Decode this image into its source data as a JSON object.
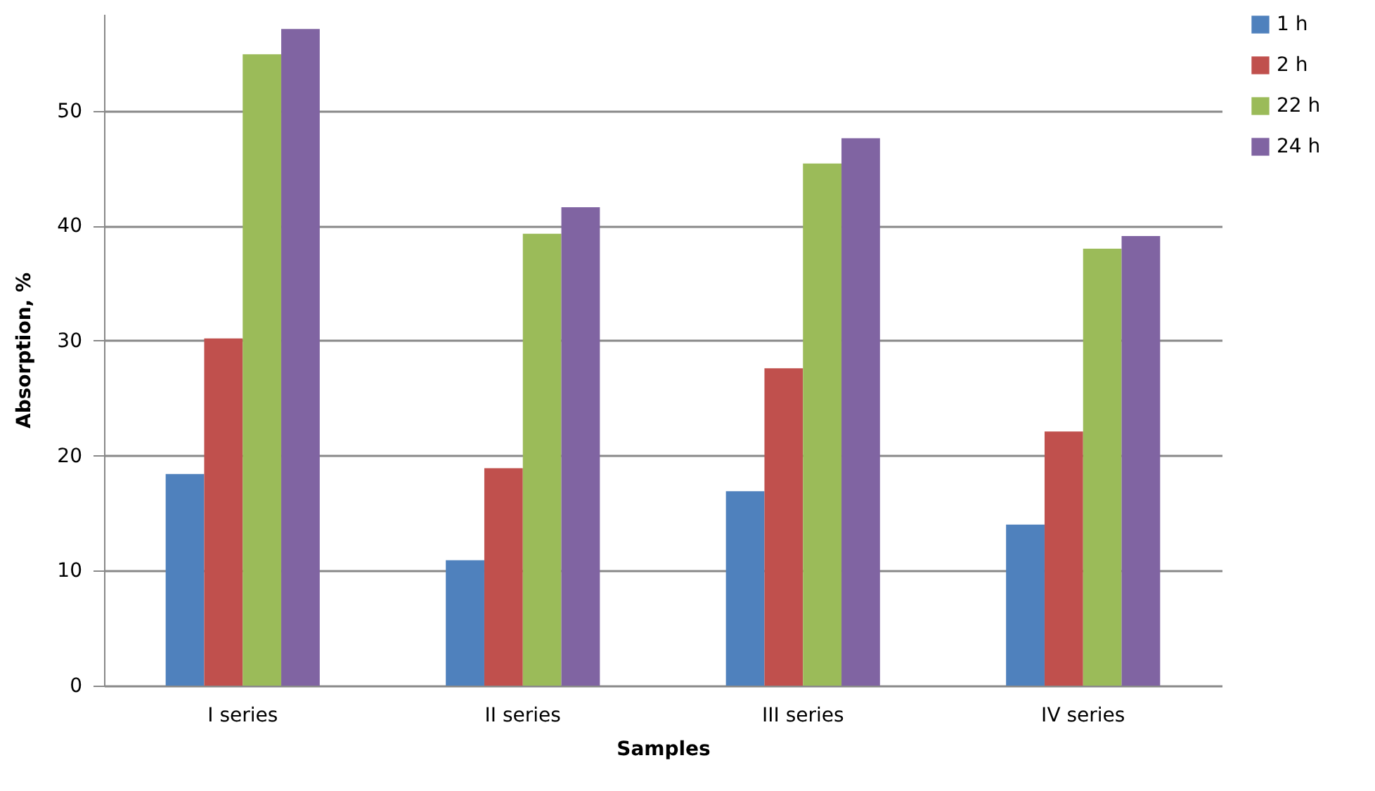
{
  "chart_data": {
    "type": "bar",
    "xlabel": "Samples",
    "ylabel": "Absorption, %",
    "categories": [
      "I series",
      "II series",
      "III series",
      "IV series"
    ],
    "series": [
      {
        "name": "1 h",
        "color": "#4f81bd",
        "values": [
          18.4,
          10.9,
          16.9,
          14.0
        ]
      },
      {
        "name": "2 h",
        "color": "#c0504d",
        "values": [
          30.2,
          18.9,
          27.6,
          22.1
        ]
      },
      {
        "name": "22 h",
        "color": "#9bbb59",
        "values": [
          54.9,
          39.3,
          45.4,
          38.0
        ]
      },
      {
        "name": "24 h",
        "color": "#8064a2",
        "values": [
          57.1,
          41.6,
          47.6,
          39.1
        ]
      }
    ],
    "ylim": [
      0,
      58.4
    ],
    "yticks": [
      0,
      10,
      20,
      30,
      40,
      50
    ],
    "grid": "y",
    "legend": "right"
  }
}
